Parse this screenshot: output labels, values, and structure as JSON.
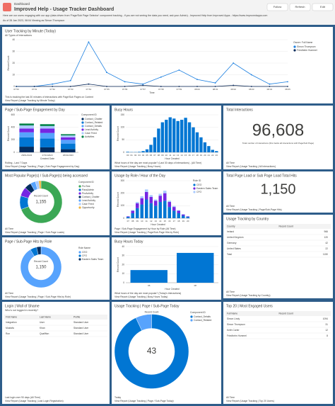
{
  "header": {
    "breadcrumb": "Dashboard",
    "title": "Improved Help - Usage Tracker Dashboard",
    "description": "Here are our users engaging with our app (data driven from 'Page/Sub Page Selector' component tracking - if you are not seeing the data you need, ask your Admin) - Improved Help from Improved Apps - https://www.improvedapps.com",
    "asof": "As of 28 Jan 2023, 08:04 Viewing as Simon Thompson",
    "buttons": [
      "Follow",
      "Refresh",
      "Edit"
    ]
  },
  "chart_data": [
    {
      "type": "line",
      "title": "User Tracking by Minute (Today)",
      "subtitle": "All Types of Interactions",
      "xlabel": "Time",
      "ylabel": "Record Count",
      "legend_title": "Owner: Full Name",
      "categories": [
        "07:50",
        "07:51",
        "07:52",
        "07:53",
        "07:54",
        "07:55",
        "07:56",
        "07:57",
        "07:58",
        "07:59",
        "08:00",
        "08:01",
        "08:02",
        "08:03",
        "08:04",
        "08:05"
      ],
      "series": [
        {
          "name": "Simon Thompson",
          "color": "#1b7fe0",
          "values": [
            0,
            0,
            2,
            5,
            38,
            12,
            4,
            2,
            8,
            14,
            6,
            3,
            20,
            10,
            2,
            4
          ]
        },
        {
          "name": "Friedhelm Hummel",
          "color": "#0b2a5b",
          "values": [
            0,
            0,
            0,
            0,
            2,
            0,
            0,
            1,
            0,
            0,
            0,
            0,
            1,
            0,
            0,
            0
          ]
        }
      ],
      "ylim": [
        0,
        40
      ],
      "yticks": [
        0,
        10,
        20,
        30,
        40
      ],
      "notes": [
        "This is tracking the last 30 minutes of interactions with Page/Sub Pages on Content",
        "View Report (Usage Tracking by Minute Today)"
      ]
    },
    {
      "type": "stacked",
      "title": "Page / Sub-Page Engagement by Day",
      "xlabel": "Created Date",
      "ylabel": "Record Count",
      "legend_title": "Component ID",
      "categories": [
        "28/01/2023",
        "27/01/2023",
        "26/01/2023"
      ],
      "series": [
        {
          "name": "Contact_Chatter",
          "color": "#032d60",
          "values": [
            90,
            80,
            50
          ]
        },
        {
          "name": "Contact_Related",
          "color": "#0176d3",
          "values": [
            150,
            140,
            90
          ]
        },
        {
          "name": "Contact_Details",
          "color": "#57a3fd",
          "values": [
            80,
            90,
            60
          ]
        },
        {
          "name": "Lead Activity",
          "color": "#7526e3",
          "values": [
            60,
            70,
            40
          ]
        },
        {
          "name": "Case Feed",
          "color": "#aacbff",
          "values": [
            50,
            40,
            30
          ]
        },
        {
          "name": "Activities",
          "color": "#04844b",
          "values": [
            30,
            30,
            20
          ]
        }
      ],
      "ylim": [
        0,
        600
      ],
      "yticks": [
        0,
        200,
        400,
        600
      ],
      "notes": [
        "Rolling - Last 7 Days",
        "View Report (Usage Tracking | Page | Sub-Page Engagement by Day)"
      ]
    },
    {
      "type": "bar",
      "title": "Busy Hours",
      "xlabel": "Hour Created",
      "ylabel": "Record Count",
      "color": "#0176d3",
      "categories": [
        "00",
        "01",
        "02",
        "03",
        "04",
        "05",
        "06",
        "07",
        "08",
        "09",
        "10",
        "11",
        "12",
        "13",
        "14",
        "15",
        "16",
        "17",
        "18",
        "19",
        "20",
        "21",
        "22",
        "23"
      ],
      "values": [
        2,
        1,
        1,
        2,
        5,
        12,
        30,
        60,
        95,
        120,
        130,
        140,
        135,
        125,
        130,
        138,
        120,
        100,
        80,
        60,
        40,
        25,
        10,
        5
      ],
      "ylim": [
        0,
        150
      ],
      "yticks": [
        0,
        50,
        100,
        150
      ],
      "notes": [
        "What hours of the day are most popular? (Last 30 days of interactions) - (All Time)",
        "View Report (Usage Tracking | Busy Hours)"
      ]
    },
    {
      "type": "metric",
      "title": "Total Interactions",
      "values": [
        96608
      ],
      "value_labels": [
        "96,608"
      ],
      "caption": "Total number of interactions (this tracks all interactions with Page/Sub Page)",
      "notes": [
        "All Time",
        "View Report (Usage Tracking | All Interactions)"
      ]
    },
    {
      "type": "donut",
      "title": "Most Popular Page(s) / Sub-Page(s) being accessed",
      "legend_title": "Component ID",
      "center_title": "Record Count",
      "total": 1155,
      "total_label": "1,155",
      "categories": [
        "ProTest",
        "PassAdmin",
        "ProActivity",
        "Contact_Chatter",
        "Lead Activity",
        "Case Feed",
        "Opportunity"
      ],
      "values": [
        800,
        120,
        80,
        60,
        45,
        30,
        20
      ],
      "colors": [
        "#3ba755",
        "#0176d3",
        "#7526e3",
        "#032d60",
        "#57a3fd",
        "#aacbff",
        "#f2b43c"
      ],
      "notes": [
        "All Time",
        "View Report (Usage Tracking | Page / Sub-Page Loads)"
      ]
    },
    {
      "type": "stacked",
      "title": "Usage by Role / Hour of the Day",
      "xlabel": "Hour Created",
      "ylabel": "Record Count",
      "legend_title": "Role ID",
      "categories": [
        "07",
        "08",
        "09",
        "10",
        "11",
        "12",
        "13",
        "14",
        "15",
        "16",
        "17",
        "18",
        "19",
        "20"
      ],
      "series": [
        {
          "name": "CEO",
          "color": "#0176d3",
          "values": [
            10,
            40,
            80,
            110,
            150,
            120,
            100,
            130,
            140,
            90,
            60,
            40,
            20,
            10
          ]
        },
        {
          "name": "Eastern Sales Team",
          "color": "#7526e3",
          "values": [
            5,
            20,
            40,
            50,
            60,
            50,
            40,
            50,
            60,
            40,
            30,
            20,
            10,
            5
          ]
        },
        {
          "name": "CFO",
          "color": "#aacbff",
          "values": [
            2,
            5,
            10,
            15,
            20,
            15,
            10,
            15,
            20,
            10,
            8,
            5,
            3,
            2
          ]
        }
      ],
      "ylim": [
        0,
        300
      ],
      "yticks": [
        0,
        100,
        200,
        300
      ],
      "notes": [
        "Page / Sub-Page Engagement by Hour by Role (All Time)",
        "View Report (Usage Tracking | Page/Sub-Page Hits by Role)"
      ]
    },
    {
      "type": "metric",
      "title": "Total Page Load or Sub Page Load Total Hits",
      "values": [
        1150
      ],
      "value_labels": [
        "1,150"
      ],
      "notes": [
        "All Time",
        "View Report (Usage Tracking | Page/Sub-Page Hits)"
      ]
    },
    {
      "type": "donut",
      "title": "Page / Sub-Page Hits by Role",
      "legend_title": "Role Name",
      "center_title": "Record Count",
      "total": 1150,
      "total_label": "1,150",
      "categories": [
        "CEO",
        "CFO",
        "Eastern Sales Team"
      ],
      "values": [
        1050,
        60,
        40
      ],
      "colors": [
        "#57a3fd",
        "#0176d3",
        "#032d60"
      ],
      "notes": [
        "All Time",
        "View Report (Usage Tracking | Page / Sub-Page Hits by Role)"
      ]
    },
    {
      "type": "bar",
      "title": "Busy Hours Today",
      "xlabel": "Hour Created",
      "ylabel": "Record Count",
      "color": "#0176d3",
      "categories": [
        "06",
        "08"
      ],
      "values": [
        14,
        33
      ],
      "ylim": [
        0,
        40
      ],
      "yticks": [
        0,
        10,
        20,
        30,
        40
      ],
      "notes": [
        "What hours of the day are most popular? (Today's interactions)",
        "View Report (Usage Tracking | Busy Hours Today)"
      ]
    },
    {
      "type": "donut",
      "title": "Usage Tracking | Page / Sub-Page Today",
      "legend_title": "Component ID",
      "center_title": "Record Count",
      "total": 43,
      "categories": [
        "Contact_Details",
        "Contact_Related"
      ],
      "values": [
        40,
        3
      ],
      "colors": [
        "#0176d3",
        "#57a3fd"
      ],
      "notes": [
        "Today",
        "View Report (Usage Tracking | Page / Sub-Page Today)"
      ]
    }
  ],
  "tables": [
    {
      "title": "Usage Tracking by Country",
      "columns": [
        "Country",
        "Record Count"
      ],
      "rows": [
        [
          "Ireland",
          966
        ],
        [
          "United Kingdom",
          120
        ],
        [
          "Germany",
          42
        ],
        [
          "United States",
          22
        ],
        [
          "Total",
          1150
        ]
      ],
      "notes": [
        "All Time",
        "View Report (Usage Tracking by Country)"
      ]
    },
    {
      "title": "Login | Wall of Shame",
      "subtitle": "Who's not logged in recently?",
      "columns": [
        "First Name",
        "Last Name",
        "Profile"
      ],
      "rows": [
        [
          "Integration",
          "User",
          "Standard User"
        ],
        [
          "Mustafa",
          "Khan",
          "Standard User"
        ],
        [
          "Ron",
          "Quaiffton",
          "Standard User"
        ]
      ],
      "notes": [
        "Last login over 90 days (All Time)",
        "View Report (Usage Tracking | Last Login Registration)"
      ]
    },
    {
      "title": "Top 20 | Most Engaged Users",
      "columns": [
        "Full Name",
        "Record Count"
      ],
      "rows": [
        [
          "Simon Lindy",
          1094
        ],
        [
          "Simon Thompson",
          31
        ],
        [
          "Keith Carter",
          12
        ],
        [
          "Friedhelm Hummel",
          8
        ]
      ],
      "notes": [
        "All Time",
        "View Report (Usage Tracking | Top 20 Users)"
      ]
    }
  ]
}
